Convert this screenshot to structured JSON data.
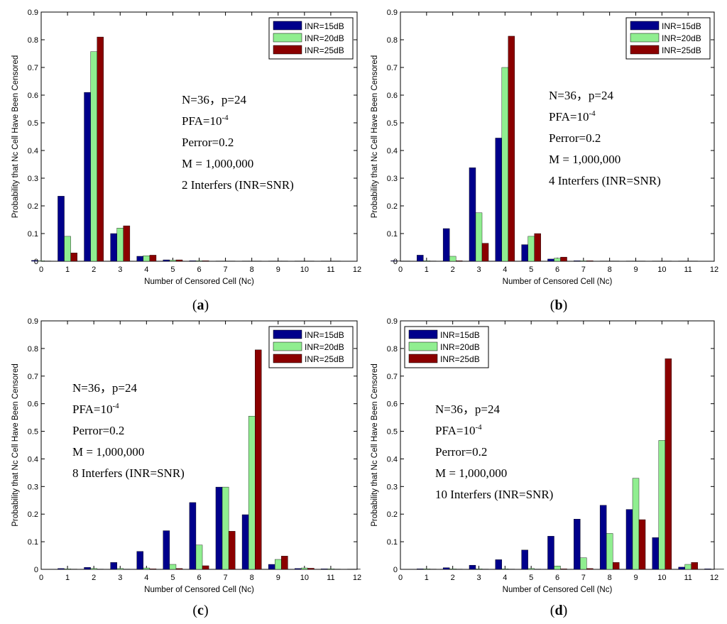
{
  "chart_data": [
    {
      "type": "bar",
      "caption_letter": "a",
      "xlabel": "Number of Censored Cell (Nc)",
      "ylabel": "Probability that Nc Cell Have Been Censored",
      "xlim": [
        0,
        12
      ],
      "ylim": [
        0,
        0.9
      ],
      "xticks": [
        "0",
        "1",
        "2",
        "3",
        "4",
        "5",
        "6",
        "7",
        "8",
        "9",
        "10",
        "11",
        "12"
      ],
      "yticks": [
        "0",
        "0.1",
        "0.2",
        "0.3",
        "0.4",
        "0.5",
        "0.6",
        "0.7",
        "0.8",
        "0.9"
      ],
      "categories": [
        0,
        1,
        2,
        3,
        4,
        5,
        6,
        7,
        8,
        9,
        10,
        11,
        12
      ],
      "series": [
        {
          "name": "INR=15dB",
          "color": "#00008b",
          "values": [
            0.003,
            0.235,
            0.61,
            0.1,
            0.018,
            0.005,
            0.002,
            0.001,
            0.001,
            0.001,
            0.001,
            0.001,
            0
          ]
        },
        {
          "name": "INR=20dB",
          "color": "#90ee90",
          "values": [
            0.002,
            0.09,
            0.757,
            0.12,
            0.02,
            0.004,
            0.002,
            0.001,
            0.001,
            0.001,
            0.001,
            0.001,
            0
          ]
        },
        {
          "name": "INR=25dB",
          "color": "#8b0000",
          "values": [
            0.001,
            0.03,
            0.81,
            0.128,
            0.022,
            0.005,
            0.002,
            0.001,
            0.001,
            0.001,
            0.001,
            0.001,
            0
          ]
        }
      ],
      "legend": "top-right",
      "annotation": {
        "line1": "N=36，p=24",
        "pfa_base": "PFA=10",
        "pfa_exp": "-4",
        "line3": "Perror=0.2",
        "line4": "M = 1,000,000",
        "line5": "2 Interfers (INR=SNR)"
      }
    },
    {
      "type": "bar",
      "caption_letter": "b",
      "xlabel": "Number of Censored Cell (Nc)",
      "ylabel": "Probability that Nc Cell Have Been Censored",
      "xlim": [
        0,
        12
      ],
      "ylim": [
        0,
        0.9
      ],
      "xticks": [
        "0",
        "1",
        "2",
        "3",
        "4",
        "5",
        "6",
        "7",
        "8",
        "9",
        "10",
        "11",
        "12"
      ],
      "yticks": [
        "0",
        "0.1",
        "0.2",
        "0.3",
        "0.4",
        "0.5",
        "0.6",
        "0.7",
        "0.8",
        "0.9"
      ],
      "categories": [
        0,
        1,
        2,
        3,
        4,
        5,
        6,
        7,
        8,
        9,
        10,
        11,
        12
      ],
      "series": [
        {
          "name": "INR=15dB",
          "color": "#00008b",
          "values": [
            0.002,
            0.022,
            0.118,
            0.338,
            0.445,
            0.06,
            0.008,
            0.002,
            0.001,
            0.001,
            0.001,
            0.001,
            0
          ]
        },
        {
          "name": "INR=20dB",
          "color": "#90ee90",
          "values": [
            0.001,
            0.002,
            0.018,
            0.175,
            0.7,
            0.09,
            0.011,
            0.002,
            0.001,
            0.001,
            0.001,
            0.001,
            0
          ]
        },
        {
          "name": "INR=25dB",
          "color": "#8b0000",
          "values": [
            0.001,
            0.001,
            0.002,
            0.065,
            0.813,
            0.1,
            0.015,
            0.002,
            0.001,
            0.001,
            0.001,
            0.001,
            0
          ]
        }
      ],
      "legend": "top-right",
      "annotation": {
        "line1": "N=36，p=24",
        "pfa_base": "PFA=10",
        "pfa_exp": "-4",
        "line3": "Perror=0.2",
        "line4": "M = 1,000,000",
        "line5": "4 Interfers (INR=SNR)"
      }
    },
    {
      "type": "bar",
      "caption_letter": "c",
      "xlabel": "Number of Censored Cell (Nc)",
      "ylabel": "Probability that Nc Cell Have Been Censored",
      "xlim": [
        0,
        12
      ],
      "ylim": [
        0,
        0.9
      ],
      "xticks": [
        "0",
        "1",
        "2",
        "3",
        "4",
        "5",
        "6",
        "7",
        "8",
        "9",
        "10",
        "11",
        "12"
      ],
      "yticks": [
        "0",
        "0.1",
        "0.2",
        "0.3",
        "0.4",
        "0.5",
        "0.6",
        "0.7",
        "0.8",
        "0.9"
      ],
      "categories": [
        0,
        1,
        2,
        3,
        4,
        5,
        6,
        7,
        8,
        9,
        10,
        11,
        12
      ],
      "series": [
        {
          "name": "INR=15dB",
          "color": "#00008b",
          "values": [
            0,
            0.003,
            0.007,
            0.025,
            0.065,
            0.14,
            0.242,
            0.298,
            0.198,
            0.018,
            0.003,
            0.002,
            0.001
          ]
        },
        {
          "name": "INR=20dB",
          "color": "#90ee90",
          "values": [
            0,
            0.002,
            0.003,
            0.003,
            0.005,
            0.018,
            0.088,
            0.298,
            0.555,
            0.036,
            0.005,
            0.002,
            0.001
          ]
        },
        {
          "name": "INR=25dB",
          "color": "#8b0000",
          "values": [
            0,
            0.001,
            0.001,
            0.001,
            0.002,
            0.003,
            0.013,
            0.138,
            0.795,
            0.048,
            0.004,
            0.001,
            0
          ]
        }
      ],
      "legend": "top-right",
      "annotation": {
        "line1": "N=36，p=24",
        "pfa_base": "PFA=10",
        "pfa_exp": "-4",
        "line3": "Perror=0.2",
        "line4": "M = 1,000,000",
        "line5": "8 Interfers (INR=SNR)"
      }
    },
    {
      "type": "bar",
      "caption_letter": "d",
      "xlabel": "Number of Censored Cell (Nc)",
      "ylabel": "Probability that Nc Cell Have Been Censored",
      "xlim": [
        0,
        12
      ],
      "ylim": [
        0,
        0.9
      ],
      "xticks": [
        "0",
        "1",
        "2",
        "3",
        "4",
        "5",
        "6",
        "7",
        "8",
        "9",
        "10",
        "11",
        "12"
      ],
      "yticks": [
        "0",
        "0.1",
        "0.2",
        "0.3",
        "0.4",
        "0.5",
        "0.6",
        "0.7",
        "0.8",
        "0.9"
      ],
      "categories": [
        0,
        1,
        2,
        3,
        4,
        5,
        6,
        7,
        8,
        9,
        10,
        11,
        12
      ],
      "series": [
        {
          "name": "INR=15dB",
          "color": "#00008b",
          "values": [
            0,
            0.002,
            0.006,
            0.015,
            0.035,
            0.07,
            0.12,
            0.182,
            0.232,
            0.217,
            0.115,
            0.008,
            0.002
          ]
        },
        {
          "name": "INR=20dB",
          "color": "#90ee90",
          "values": [
            0,
            0.002,
            0.002,
            0.002,
            0.002,
            0.003,
            0.012,
            0.042,
            0.13,
            0.33,
            0.467,
            0.018,
            0.001
          ]
        },
        {
          "name": "INR=25dB",
          "color": "#8b0000",
          "values": [
            0,
            0.001,
            0.001,
            0.001,
            0.001,
            0.001,
            0.002,
            0.003,
            0.025,
            0.18,
            0.763,
            0.025,
            0.001
          ]
        }
      ],
      "legend": "top-left",
      "annotation": {
        "line1": "N=36，p=24",
        "pfa_base": "PFA=10",
        "pfa_exp": "-4",
        "line3": "Perror=0.2",
        "line4": "M = 1,000,000",
        "line5": "10 Interfers (INR=SNR)"
      }
    }
  ]
}
